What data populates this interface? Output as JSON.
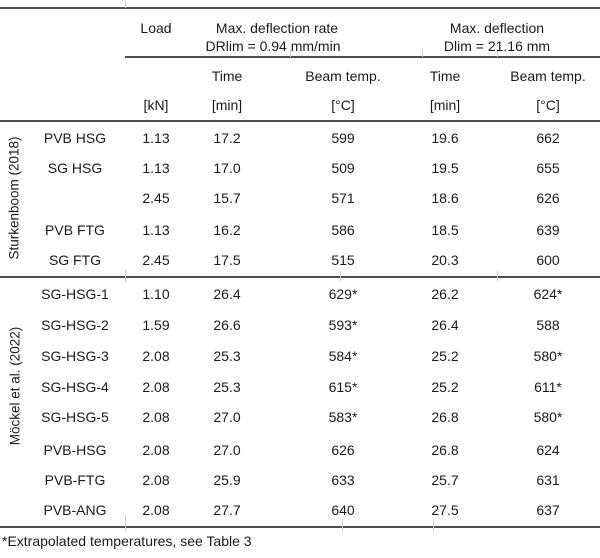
{
  "header": {
    "load": "Load",
    "dr_section_title": "Max. deflection rate",
    "dr_section_subtitle": "DRlim = 0.94 mm/min",
    "d_section_title": "Max. deflection",
    "d_section_subtitle": "Dlim = 21.16 mm",
    "dr_time": "Time",
    "dr_temp": "Beam temp.",
    "d_time": "Time",
    "d_temp": "Beam temp.",
    "unit_load": "[kN]",
    "unit_dr_time": "[min]",
    "unit_dr_temp": "[°C]",
    "unit_d_time": "[min]",
    "unit_d_temp": "[°C]"
  },
  "groups": [
    {
      "source": "Sturkenboom (2018)",
      "rows": [
        {
          "label": "PVB HSG",
          "load": "1.13",
          "dr_time": "17.2",
          "dr_temp": "599",
          "d_time": "19.6",
          "d_temp": "662"
        },
        {
          "label": "SG HSG",
          "load": "1.13",
          "dr_time": "17.0",
          "dr_temp": "509",
          "d_time": "19.5",
          "d_temp": "655"
        },
        {
          "label": "",
          "load": "2.45",
          "dr_time": "15.7",
          "dr_temp": "571",
          "d_time": "18.6",
          "d_temp": "626"
        },
        {
          "label": "PVB FTG",
          "load": "1.13",
          "dr_time": "16.2",
          "dr_temp": "586",
          "d_time": "18.5",
          "d_temp": "639"
        },
        {
          "label": "SG FTG",
          "load": "2.45",
          "dr_time": "17.5",
          "dr_temp": "515",
          "d_time": "20.3",
          "d_temp": "600"
        }
      ]
    },
    {
      "source": "Möckel et al. (2022)",
      "rows": [
        {
          "label": "SG-HSG-1",
          "load": "1.10",
          "dr_time": "26.4",
          "dr_temp": "629*",
          "d_time": "26.2",
          "d_temp": "624*"
        },
        {
          "label": "SG-HSG-2",
          "load": "1.59",
          "dr_time": "26.6",
          "dr_temp": "593*",
          "d_time": "26.4",
          "d_temp": "588"
        },
        {
          "label": "SG-HSG-3",
          "load": "2.08",
          "dr_time": "25.3",
          "dr_temp": "584*",
          "d_time": "25.2",
          "d_temp": "580*"
        },
        {
          "label": "SG-HSG-4",
          "load": "2.08",
          "dr_time": "25.3",
          "dr_temp": "615*",
          "d_time": "25.2",
          "d_temp": "611*"
        },
        {
          "label": "SG-HSG-5",
          "load": "2.08",
          "dr_time": "27.0",
          "dr_temp": "583*",
          "d_time": "26.8",
          "d_temp": "580*"
        },
        {
          "label": "PVB-HSG",
          "load": "2.08",
          "dr_time": "27.0",
          "dr_temp": "626",
          "d_time": "26.8",
          "d_temp": "624"
        },
        {
          "label": "PVB-FTG",
          "load": "2.08",
          "dr_time": "25.9",
          "dr_temp": "633",
          "d_time": "25.7",
          "d_temp": "631"
        },
        {
          "label": "PVB-ANG",
          "load": "2.08",
          "dr_time": "27.7",
          "dr_temp": "640",
          "d_time": "27.5",
          "d_temp": "637"
        }
      ]
    }
  ],
  "footnote": "*Extrapolated temperatures, see Table 3",
  "colors": {
    "text": "#1a1a1a",
    "rule": "#4d4d4d",
    "gridline_stub": "#cccccc",
    "background": "#ffffff"
  }
}
